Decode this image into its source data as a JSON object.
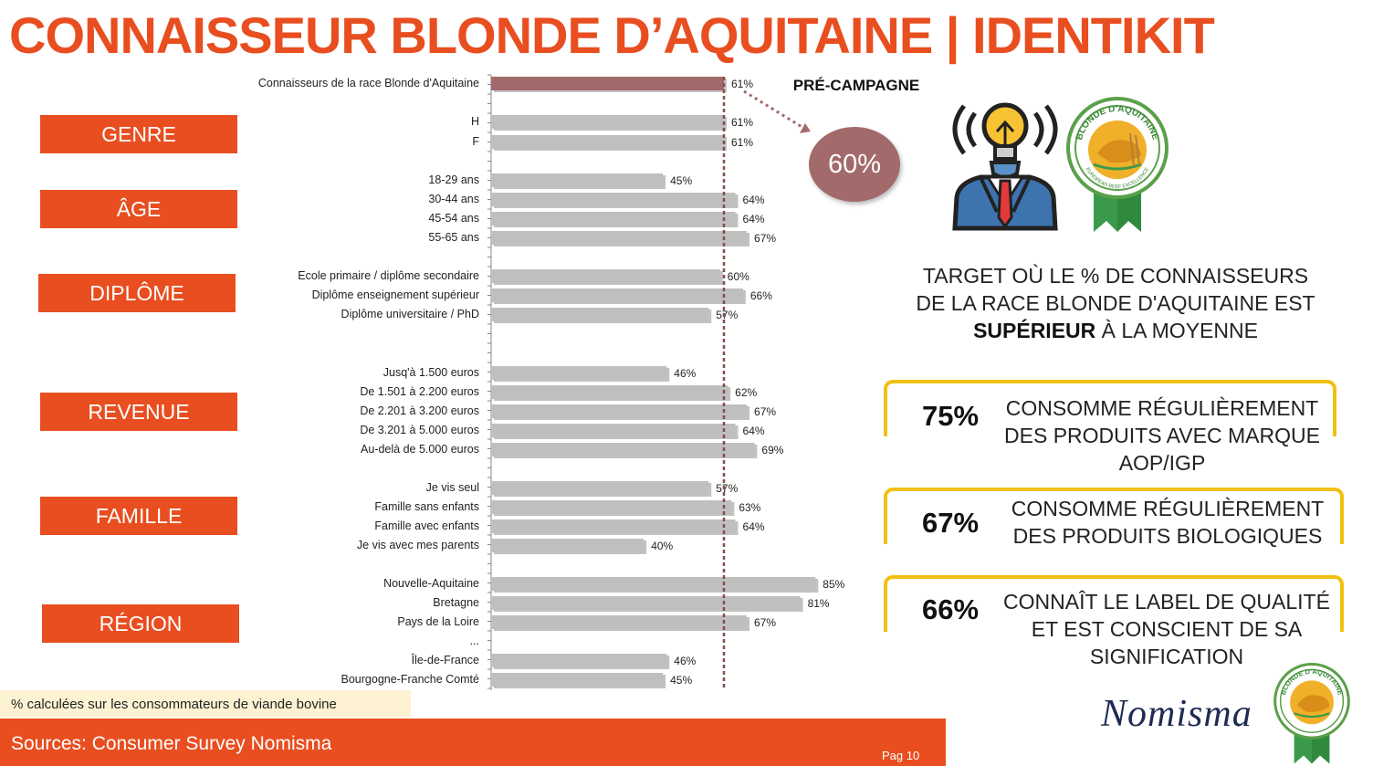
{
  "title": "CONNAISSEUR BLONDE D’AQUITAINE | IDENTIKIT",
  "categories": [
    "GENRE",
    "ÂGE",
    "DIPLÔME",
    "REVENUE",
    "FAMILLE",
    "RÉGION"
  ],
  "chart_data": {
    "type": "bar",
    "orientation": "horizontal",
    "reference_line": 61,
    "xlim": [
      0,
      100
    ],
    "bars": [
      {
        "label": "Connaisseurs de la race Blonde d'Aquitaine",
        "value": 61,
        "display": "61%",
        "highlight": true
      },
      {
        "label": "H",
        "value": 61,
        "display": "61%"
      },
      {
        "label": "F",
        "value": 61,
        "display": "61%"
      },
      {
        "label": "18-29 ans",
        "value": 45,
        "display": "45%"
      },
      {
        "label": "30-44 ans",
        "value": 64,
        "display": "64%"
      },
      {
        "label": "45-54 ans",
        "value": 64,
        "display": "64%"
      },
      {
        "label": "55-65 ans",
        "value": 67,
        "display": "67%"
      },
      {
        "label": "Ecole primaire / diplôme secondaire",
        "value": 60,
        "display": "60%"
      },
      {
        "label": "Diplôme enseignement supérieur",
        "value": 66,
        "display": "66%"
      },
      {
        "label": "Diplôme universitaire / PhD",
        "value": 57,
        "display": "57%"
      },
      {
        "label": "Jusq'à 1.500 euros",
        "value": 46,
        "display": "46%"
      },
      {
        "label": "De 1.501 à 2.200 euros",
        "value": 62,
        "display": "62%"
      },
      {
        "label": "De 2.201 à 3.200 euros",
        "value": 67,
        "display": "67%"
      },
      {
        "label": "De 3.201 à 5.000 euros",
        "value": 64,
        "display": "64%"
      },
      {
        "label": "Au-delà de 5.000 euros",
        "value": 69,
        "display": "69%"
      },
      {
        "label": "Je vis seul",
        "value": 57,
        "display": "57%"
      },
      {
        "label": "Famille sans enfants",
        "value": 63,
        "display": "63%"
      },
      {
        "label": "Famille avec enfants",
        "value": 64,
        "display": "64%"
      },
      {
        "label": "Je vis avec mes parents",
        "value": 40,
        "display": "40%"
      },
      {
        "label": "Nouvelle-Aquitaine",
        "value": 85,
        "display": "85%"
      },
      {
        "label": "Bretagne",
        "value": 81,
        "display": "81%"
      },
      {
        "label": "Pays de la Loire",
        "value": 67,
        "display": "67%"
      },
      {
        "label": "...",
        "value": null,
        "display": ""
      },
      {
        "label": "Île-de-France",
        "value": 46,
        "display": "46%"
      },
      {
        "label": "Bourgogne-Franche Comté",
        "value": 45,
        "display": "45%"
      }
    ]
  },
  "precampagne": {
    "label": "PRÉ-CAMPAGNE",
    "value": "60%"
  },
  "target": {
    "line1": "TARGET OÙ LE % DE CONNAISSEURS",
    "line2": "DE LA RACE BLONDE D'AQUITAINE EST",
    "bold": "SUPÉRIEUR",
    "rest": " À LA MOYENNE"
  },
  "kpis": [
    {
      "value": "75%",
      "text": "CONSOMME RÉGULIÈREMENT DES PRODUITS AVEC MARQUE AOP/IGP"
    },
    {
      "value": "67%",
      "text": "CONSOMME RÉGULIÈREMENT DES PRODUITS BIOLOGIQUES"
    },
    {
      "value": "66%",
      "text": "CONNAÎT LE LABEL DE QUALITÉ ET EST CONSCIENT DE SA SIGNIFICATION"
    }
  ],
  "seal": {
    "top": "BLONDE D'AQUITAINE",
    "bottom": "EUROPEAN BEEF EXCELLENCE"
  },
  "note": "% calculées sur les consommateurs de viande bovine",
  "sources": "Sources: Consumer Survey Nomisma",
  "page": "Pag 10",
  "brand": "Nomisma",
  "colors": {
    "accent": "#e84e1f",
    "bar": "#bfbfbf",
    "highlight_bar": "#a26a6a",
    "kpi_border": "#f2c012"
  },
  "icons": [
    "idea-person-icon",
    "blonde-aquitaine-seal-icon"
  ]
}
